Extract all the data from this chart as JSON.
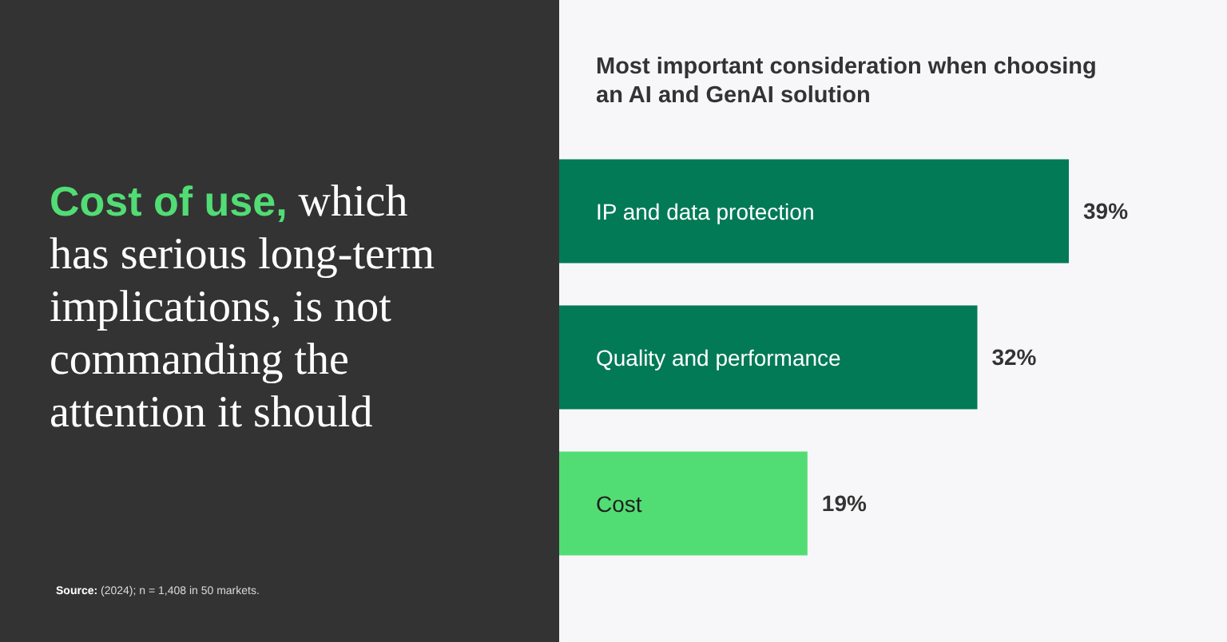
{
  "chart_data": {
    "type": "bar",
    "orientation": "horizontal",
    "title": "Cost of use, which has serious long-term implications, is not commanding the attention it should",
    "subtitle": "Most important consideration when choosing an AI and GenAI solution",
    "categories": [
      "IP and data protection",
      "Quality and performance",
      "Cost"
    ],
    "values": [
      39,
      32,
      19
    ],
    "colors": [
      "#027a55",
      "#027a55",
      "#52dd74"
    ],
    "value_labels": [
      "39%",
      "32%",
      "19%"
    ],
    "annotations": [
      "Source: (2024); n = 1,408 in 50 markets."
    ]
  }
}
